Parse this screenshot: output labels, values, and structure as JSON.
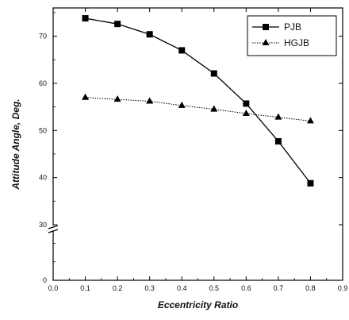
{
  "chart_data": {
    "type": "line",
    "xlabel": "Eccentricity Ratio",
    "ylabel": "Attitude Angle, Deg.",
    "xlim": [
      0.0,
      0.9
    ],
    "x_ticks": [
      "0.0",
      "0.1",
      "0.2",
      "0.3",
      "0.4",
      "0.5",
      "0.6",
      "0.7",
      "0.8",
      "0.9"
    ],
    "y_ticks_lower": [
      "0"
    ],
    "y_ticks_upper": [
      "30",
      "40",
      "50",
      "60",
      "70"
    ],
    "y_axis_break": [
      0,
      30
    ],
    "ylim": [
      0,
      76
    ],
    "grid": false,
    "legend_position": "top-right",
    "x": [
      0.1,
      0.2,
      0.3,
      0.4,
      0.5,
      0.6,
      0.7,
      0.8
    ],
    "series": [
      {
        "name": "PJB",
        "marker": "square",
        "line_style": "solid",
        "values": [
          73.8,
          72.6,
          70.4,
          67.0,
          62.1,
          55.7,
          47.7,
          38.8
        ]
      },
      {
        "name": "HGJB",
        "marker": "triangle",
        "line_style": "dotted",
        "values": [
          57.0,
          56.6,
          56.2,
          55.3,
          54.5,
          53.6,
          52.8,
          52.0
        ]
      }
    ],
    "colors": {
      "axis": "#000000",
      "series": "#000000"
    }
  }
}
